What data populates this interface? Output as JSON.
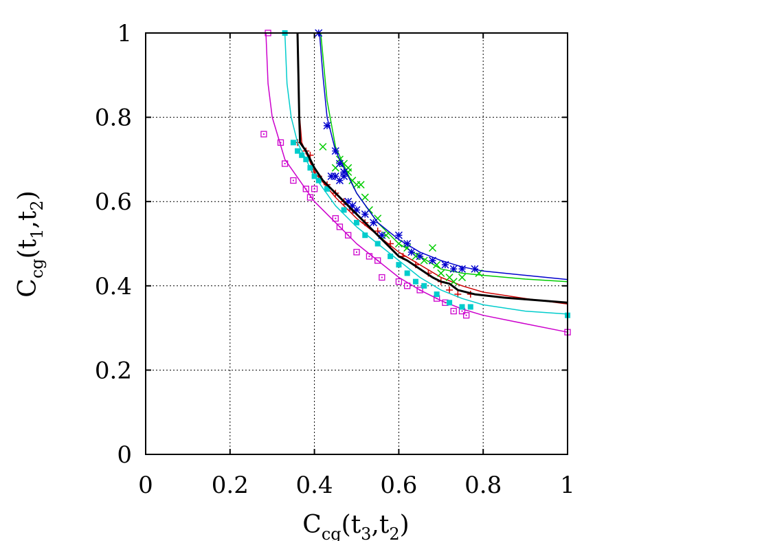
{
  "chart_data": {
    "type": "scatter",
    "title": "",
    "xlabel": {
      "base": "C",
      "sub": "cg",
      "args": [
        "(t",
        "3",
        ",t",
        "2",
        ")"
      ]
    },
    "ylabel": {
      "base": "C",
      "sub": "cg",
      "args": [
        "(t",
        "1",
        ",t",
        "2",
        ")"
      ]
    },
    "xlim": [
      0,
      1
    ],
    "ylim": [
      0,
      1
    ],
    "xticks": [
      "0",
      "0.2",
      "0.4",
      "0.6",
      "0.8",
      "1"
    ],
    "yticks": [
      "0",
      "0.2",
      "0.4",
      "0.6",
      "0.8",
      "1"
    ],
    "grid": true,
    "legend": "none",
    "series": [
      {
        "marker": "plus",
        "color": "#cc0000",
        "points": [
          [
            0.36,
            0.74
          ],
          [
            0.38,
            0.72
          ],
          [
            0.39,
            0.71
          ],
          [
            0.4,
            0.67
          ],
          [
            0.41,
            0.66
          ],
          [
            0.43,
            0.64
          ],
          [
            0.45,
            0.62
          ],
          [
            0.47,
            0.6
          ],
          [
            0.49,
            0.58
          ],
          [
            0.52,
            0.55
          ],
          [
            0.55,
            0.53
          ],
          [
            0.58,
            0.5
          ],
          [
            0.61,
            0.47
          ],
          [
            0.64,
            0.45
          ],
          [
            0.67,
            0.43
          ],
          [
            0.7,
            0.41
          ],
          [
            0.72,
            0.39
          ],
          [
            0.74,
            0.38
          ],
          [
            0.77,
            0.38
          ]
        ],
        "fit": [
          [
            0.36,
            1.0
          ],
          [
            0.362,
            0.9
          ],
          [
            0.365,
            0.8
          ],
          [
            0.37,
            0.74
          ],
          [
            0.4,
            0.67
          ],
          [
            0.45,
            0.61
          ],
          [
            0.5,
            0.56
          ],
          [
            0.55,
            0.52
          ],
          [
            0.6,
            0.48
          ],
          [
            0.65,
            0.45
          ],
          [
            0.7,
            0.42
          ],
          [
            0.75,
            0.4
          ],
          [
            0.8,
            0.385
          ],
          [
            0.9,
            0.37
          ],
          [
            1.0,
            0.357
          ]
        ]
      },
      {
        "marker": "cross",
        "color": "#00cc00",
        "points": [
          [
            0.42,
            0.73
          ],
          [
            0.45,
            0.68
          ],
          [
            0.46,
            0.7
          ],
          [
            0.47,
            0.69
          ],
          [
            0.48,
            0.68
          ],
          [
            0.48,
            0.67
          ],
          [
            0.49,
            0.65
          ],
          [
            0.5,
            0.64
          ],
          [
            0.51,
            0.64
          ],
          [
            0.52,
            0.61
          ],
          [
            0.53,
            0.58
          ],
          [
            0.55,
            0.56
          ],
          [
            0.57,
            0.52
          ],
          [
            0.6,
            0.5
          ],
          [
            0.62,
            0.49
          ],
          [
            0.64,
            0.47
          ],
          [
            0.66,
            0.46
          ],
          [
            0.68,
            0.49
          ],
          [
            0.69,
            0.45
          ],
          [
            0.7,
            0.43
          ],
          [
            0.72,
            0.42
          ],
          [
            0.73,
            0.41
          ],
          [
            0.75,
            0.42
          ],
          [
            0.79,
            0.43
          ]
        ],
        "fit": [
          [
            0.415,
            1.0
          ],
          [
            0.43,
            0.84
          ],
          [
            0.45,
            0.73
          ],
          [
            0.5,
            0.62
          ],
          [
            0.55,
            0.55
          ],
          [
            0.6,
            0.5
          ],
          [
            0.65,
            0.47
          ],
          [
            0.7,
            0.44
          ],
          [
            0.75,
            0.43
          ],
          [
            0.8,
            0.425
          ],
          [
            0.9,
            0.416
          ],
          [
            1.0,
            0.41
          ]
        ]
      },
      {
        "marker": "asterisk",
        "color": "#0000cc",
        "points": [
          [
            0.41,
            1.0
          ],
          [
            0.43,
            0.78
          ],
          [
            0.44,
            0.66
          ],
          [
            0.45,
            0.72
          ],
          [
            0.45,
            0.66
          ],
          [
            0.46,
            0.69
          ],
          [
            0.46,
            0.65
          ],
          [
            0.47,
            0.67
          ],
          [
            0.47,
            0.66
          ],
          [
            0.48,
            0.6
          ],
          [
            0.49,
            0.59
          ],
          [
            0.5,
            0.58
          ],
          [
            0.52,
            0.57
          ],
          [
            0.54,
            0.55
          ],
          [
            0.56,
            0.52
          ],
          [
            0.6,
            0.52
          ],
          [
            0.62,
            0.5
          ],
          [
            0.63,
            0.48
          ],
          [
            0.65,
            0.47
          ],
          [
            0.68,
            0.46
          ],
          [
            0.71,
            0.45
          ],
          [
            0.73,
            0.44
          ],
          [
            0.75,
            0.44
          ],
          [
            0.78,
            0.44
          ]
        ],
        "fit": [
          [
            0.412,
            1.0
          ],
          [
            0.42,
            0.9
          ],
          [
            0.43,
            0.8
          ],
          [
            0.45,
            0.72
          ],
          [
            0.5,
            0.62
          ],
          [
            0.55,
            0.55
          ],
          [
            0.6,
            0.51
          ],
          [
            0.65,
            0.48
          ],
          [
            0.7,
            0.46
          ],
          [
            0.75,
            0.445
          ],
          [
            0.8,
            0.435
          ],
          [
            0.9,
            0.425
          ],
          [
            1.0,
            0.415
          ]
        ]
      },
      {
        "marker": "square-open",
        "color": "#cc00cc",
        "points": [
          [
            0.29,
            1.0
          ],
          [
            0.28,
            0.76
          ],
          [
            0.32,
            0.74
          ],
          [
            0.33,
            0.69
          ],
          [
            0.35,
            0.65
          ],
          [
            0.38,
            0.63
          ],
          [
            0.39,
            0.61
          ],
          [
            0.4,
            0.63
          ],
          [
            0.45,
            0.56
          ],
          [
            0.46,
            0.54
          ],
          [
            0.48,
            0.52
          ],
          [
            0.5,
            0.48
          ],
          [
            0.53,
            0.47
          ],
          [
            0.55,
            0.46
          ],
          [
            0.56,
            0.42
          ],
          [
            0.6,
            0.41
          ],
          [
            0.62,
            0.4
          ],
          [
            0.65,
            0.39
          ],
          [
            0.69,
            0.37
          ],
          [
            0.71,
            0.36
          ],
          [
            0.73,
            0.34
          ],
          [
            0.75,
            0.34
          ],
          [
            0.76,
            0.33
          ],
          [
            1.0,
            0.29
          ]
        ],
        "fit": [
          [
            0.285,
            1.0
          ],
          [
            0.29,
            0.88
          ],
          [
            0.3,
            0.8
          ],
          [
            0.33,
            0.7
          ],
          [
            0.4,
            0.6
          ],
          [
            0.45,
            0.55
          ],
          [
            0.5,
            0.5
          ],
          [
            0.55,
            0.46
          ],
          [
            0.6,
            0.42
          ],
          [
            0.65,
            0.39
          ],
          [
            0.7,
            0.365
          ],
          [
            0.75,
            0.345
          ],
          [
            0.8,
            0.33
          ],
          [
            0.9,
            0.31
          ],
          [
            1.0,
            0.29
          ]
        ]
      },
      {
        "marker": "square-filled",
        "color": "#00cccc",
        "points": [
          [
            0.33,
            1.0
          ],
          [
            0.35,
            0.74
          ],
          [
            0.36,
            0.72
          ],
          [
            0.37,
            0.71
          ],
          [
            0.38,
            0.7
          ],
          [
            0.39,
            0.68
          ],
          [
            0.4,
            0.66
          ],
          [
            0.41,
            0.65
          ],
          [
            0.43,
            0.63
          ],
          [
            0.47,
            0.58
          ],
          [
            0.5,
            0.55
          ],
          [
            0.52,
            0.52
          ],
          [
            0.55,
            0.5
          ],
          [
            0.58,
            0.47
          ],
          [
            0.6,
            0.45
          ],
          [
            0.62,
            0.43
          ],
          [
            0.64,
            0.41
          ],
          [
            0.66,
            0.4
          ],
          [
            0.69,
            0.38
          ],
          [
            0.72,
            0.36
          ],
          [
            0.75,
            0.35
          ],
          [
            0.77,
            0.35
          ],
          [
            1.0,
            0.33
          ]
        ],
        "fit": [
          [
            0.33,
            1.0
          ],
          [
            0.335,
            0.88
          ],
          [
            0.345,
            0.8
          ],
          [
            0.36,
            0.74
          ],
          [
            0.4,
            0.66
          ],
          [
            0.45,
            0.59
          ],
          [
            0.5,
            0.54
          ],
          [
            0.55,
            0.5
          ],
          [
            0.6,
            0.46
          ],
          [
            0.65,
            0.42
          ],
          [
            0.7,
            0.39
          ],
          [
            0.75,
            0.37
          ],
          [
            0.8,
            0.355
          ],
          [
            0.9,
            0.34
          ],
          [
            1.0,
            0.333
          ]
        ]
      },
      {
        "marker": "none",
        "color": "#000000",
        "thick": true,
        "fit": [
          [
            0.36,
            1.0
          ],
          [
            0.362,
            0.9
          ],
          [
            0.364,
            0.8
          ],
          [
            0.366,
            0.74
          ],
          [
            0.38,
            0.72
          ],
          [
            0.4,
            0.68
          ],
          [
            0.42,
            0.65
          ],
          [
            0.45,
            0.62
          ],
          [
            0.48,
            0.59
          ],
          [
            0.5,
            0.57
          ],
          [
            0.52,
            0.55
          ],
          [
            0.55,
            0.52
          ],
          [
            0.58,
            0.49
          ],
          [
            0.6,
            0.47
          ],
          [
            0.62,
            0.46
          ],
          [
            0.65,
            0.44
          ],
          [
            0.68,
            0.42
          ],
          [
            0.7,
            0.41
          ],
          [
            0.72,
            0.405
          ],
          [
            0.74,
            0.39
          ],
          [
            0.78,
            0.38
          ],
          [
            0.85,
            0.372
          ],
          [
            0.9,
            0.368
          ],
          [
            1.0,
            0.36
          ]
        ]
      }
    ]
  }
}
